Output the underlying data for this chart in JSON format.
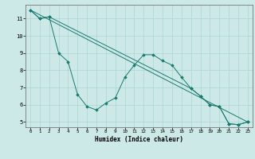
{
  "xlabel": "Humidex (Indice chaleur)",
  "bg_color": "#cce9e8",
  "grid_color": "#aad4d3",
  "line_color": "#1a7a6e",
  "xlim": [
    -0.5,
    23.5
  ],
  "ylim": [
    4.7,
    11.8
  ],
  "yticks": [
    5,
    6,
    7,
    8,
    9,
    10,
    11
  ],
  "xticks": [
    0,
    1,
    2,
    3,
    4,
    5,
    6,
    7,
    8,
    9,
    10,
    11,
    12,
    13,
    14,
    15,
    16,
    17,
    18,
    19,
    20,
    21,
    22,
    23
  ],
  "line1_x": [
    0,
    1,
    2,
    3,
    4,
    5,
    6,
    7,
    8,
    9,
    10,
    11,
    12,
    13,
    14,
    15,
    16,
    17,
    18,
    19,
    20,
    21,
    22,
    23
  ],
  "line1_y": [
    11.5,
    11.0,
    11.1,
    9.0,
    8.5,
    6.6,
    5.9,
    5.7,
    6.1,
    6.4,
    7.6,
    8.3,
    8.9,
    8.9,
    8.55,
    8.3,
    7.6,
    6.95,
    6.5,
    6.0,
    5.9,
    4.9,
    4.85,
    5.0
  ],
  "line2_x": [
    0,
    23
  ],
  "line2_y": [
    11.5,
    5.0
  ],
  "line3_x": [
    0,
    1,
    2,
    17,
    18,
    19,
    20,
    21,
    22,
    23
  ],
  "line3_y": [
    11.5,
    11.0,
    11.1,
    6.95,
    6.5,
    6.0,
    5.9,
    4.9,
    4.85,
    5.0
  ]
}
